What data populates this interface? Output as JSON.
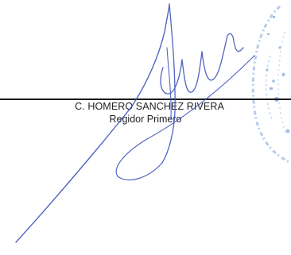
{
  "signature_block": {
    "name": "C. HOMERO SANCHEZ RIVERA",
    "title": "Regidor Primero"
  },
  "colors": {
    "ink": "#3a4fb8",
    "seal": "#8fb1dd",
    "text": "#222222",
    "rule": "#1a1a1a"
  }
}
